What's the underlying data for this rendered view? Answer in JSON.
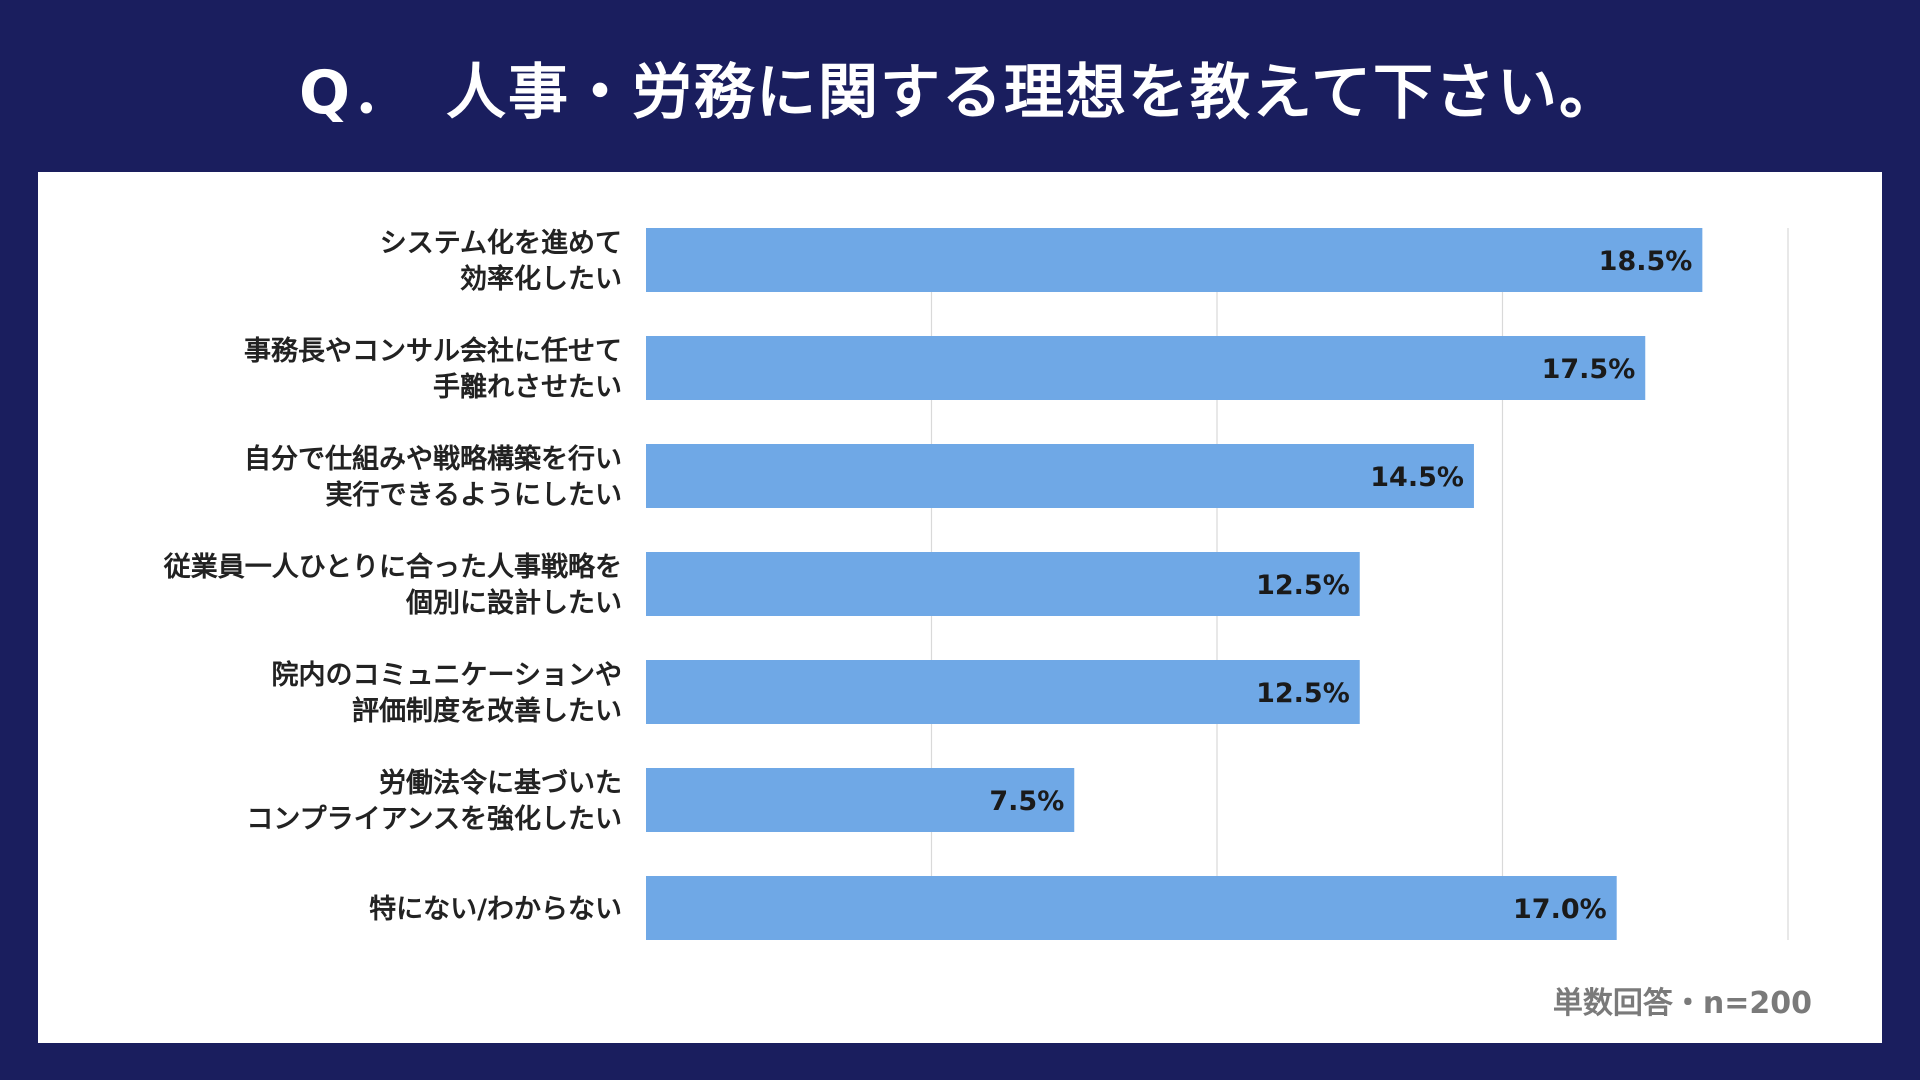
{
  "title": "Q．　人事・労務に関する理想を教えて下さい。",
  "note": "単数回答・n=200",
  "colors": {
    "background": "#1a1e5e",
    "bar": "#6fa8e6",
    "panel": "#ffffff"
  },
  "chart_data": {
    "type": "bar",
    "orientation": "horizontal",
    "xlim": [
      0,
      20
    ],
    "grid": true,
    "categories": [
      [
        "システム化を進めて",
        "効率化したい"
      ],
      [
        "事務長やコンサル会社に任せて",
        "手離れさせたい"
      ],
      [
        "自分で仕組みや戦略構築を行い",
        "実行できるようにしたい"
      ],
      [
        "従業員一人ひとりに合った人事戦略を",
        "個別に設計したい"
      ],
      [
        "院内のコミュニケーションや",
        "評価制度を改善したい"
      ],
      [
        "労働法令に基づいた",
        "コンプライアンスを強化したい"
      ],
      [
        "特にない/わからない"
      ]
    ],
    "values": [
      18.5,
      17.5,
      14.5,
      12.5,
      12.5,
      7.5,
      17.0
    ],
    "value_labels": [
      "18.5%",
      "17.5%",
      "14.5%",
      "12.5%",
      "12.5%",
      "7.5%",
      "17.0%"
    ]
  }
}
